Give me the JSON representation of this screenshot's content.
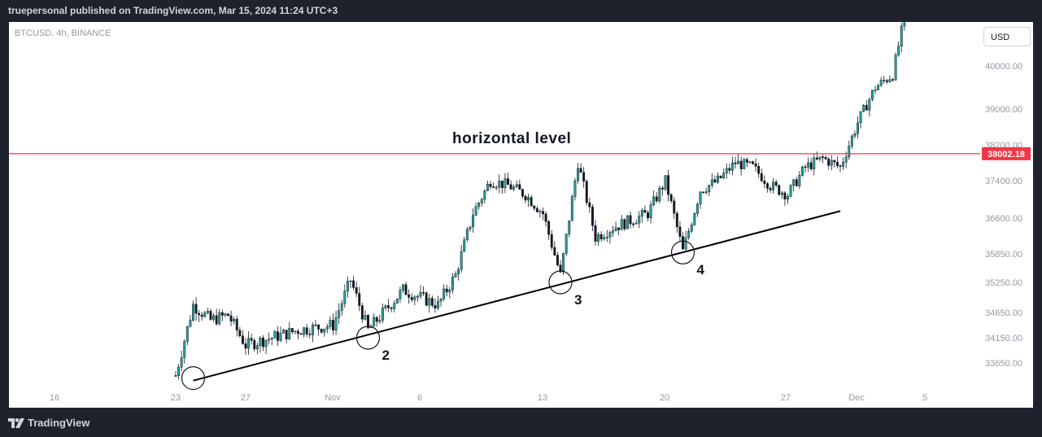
{
  "header": {
    "attribution": "truepersonal published on TradingView.com, Mar 15, 2024 11:24 UTC+3"
  },
  "footer": {
    "brand": "TradingView",
    "logo_icon": "tradingview-logo-icon"
  },
  "colors": {
    "up": "#26a69a",
    "down": "#131722",
    "candle_body": "#131722",
    "level_line": "#f23645",
    "price_tag_bg": "#f23645",
    "trendline": "#000000",
    "background": "#ffffff",
    "frame": "#1e222d"
  },
  "chart_data": {
    "type": "candlestick",
    "symbol_label": "BTCUSD, 4h, BINANCE",
    "currency": "USD",
    "x_ticks": [
      "16",
      "23",
      "27",
      "Nov",
      "6",
      "13",
      "20",
      "27",
      "Dec",
      "5"
    ],
    "y_ticks": [
      "40000.00",
      "39000.00",
      "38200.00",
      "37400.00",
      "36600.00",
      "35850.00",
      "35250.00",
      "34650.00",
      "34150.00",
      "33650.00"
    ],
    "horizontal_level": {
      "label": "horizontal level",
      "price": "38002.18",
      "value": 38002.18
    },
    "trendline": {
      "from": {
        "date": "Oct 24",
        "price": 33300
      },
      "to": {
        "date": "Nov 30",
        "price": 36750
      }
    },
    "touch_points": [
      {
        "label": "",
        "date": "Oct 24",
        "price": 33350
      },
      {
        "label": "2",
        "date": "Nov 3",
        "price": 34150
      },
      {
        "label": "3",
        "date": "Nov 14",
        "price": 35250
      },
      {
        "label": "4",
        "date": "Nov 21",
        "price": 35880
      }
    ],
    "price_path": [
      {
        "date": "Oct 23",
        "close": 33400
      },
      {
        "date": "Oct 24",
        "close": 34800
      },
      {
        "date": "Oct 25",
        "close": 34500
      },
      {
        "date": "Oct 26",
        "close": 34600
      },
      {
        "date": "Oct 27",
        "close": 34000
      },
      {
        "date": "Oct 28",
        "close": 34100
      },
      {
        "date": "Oct 30",
        "close": 34300
      },
      {
        "date": "Nov 1",
        "close": 34400
      },
      {
        "date": "Nov 2",
        "close": 35300
      },
      {
        "date": "Nov 3",
        "close": 34300
      },
      {
        "date": "Nov 4",
        "close": 34700
      },
      {
        "date": "Nov 5",
        "close": 35100
      },
      {
        "date": "Nov 7",
        "close": 34800
      },
      {
        "date": "Nov 8",
        "close": 35400
      },
      {
        "date": "Nov 9",
        "close": 36700
      },
      {
        "date": "Nov 10",
        "close": 37400
      },
      {
        "date": "Nov 11",
        "close": 37300
      },
      {
        "date": "Nov 12",
        "close": 37100
      },
      {
        "date": "Nov 13",
        "close": 36700
      },
      {
        "date": "Nov 14",
        "close": 35400
      },
      {
        "date": "Nov 15",
        "close": 37800
      },
      {
        "date": "Nov 16",
        "close": 36200
      },
      {
        "date": "Nov 17",
        "close": 36400
      },
      {
        "date": "Nov 19",
        "close": 36700
      },
      {
        "date": "Nov 20",
        "close": 37400
      },
      {
        "date": "Nov 21",
        "close": 35900
      },
      {
        "date": "Nov 22",
        "close": 37200
      },
      {
        "date": "Nov 23",
        "close": 37400
      },
      {
        "date": "Nov 24",
        "close": 37800
      },
      {
        "date": "Nov 25",
        "close": 37700
      },
      {
        "date": "Nov 26",
        "close": 37300
      },
      {
        "date": "Nov 27",
        "close": 37100
      },
      {
        "date": "Nov 28",
        "close": 37700
      },
      {
        "date": "Nov 29",
        "close": 37900
      },
      {
        "date": "Nov 30",
        "close": 37700
      },
      {
        "date": "Dec 1",
        "close": 38700
      },
      {
        "date": "Dec 2",
        "close": 39500
      },
      {
        "date": "Dec 3",
        "close": 39800
      },
      {
        "date": "Dec 4",
        "close": 41800
      }
    ]
  }
}
